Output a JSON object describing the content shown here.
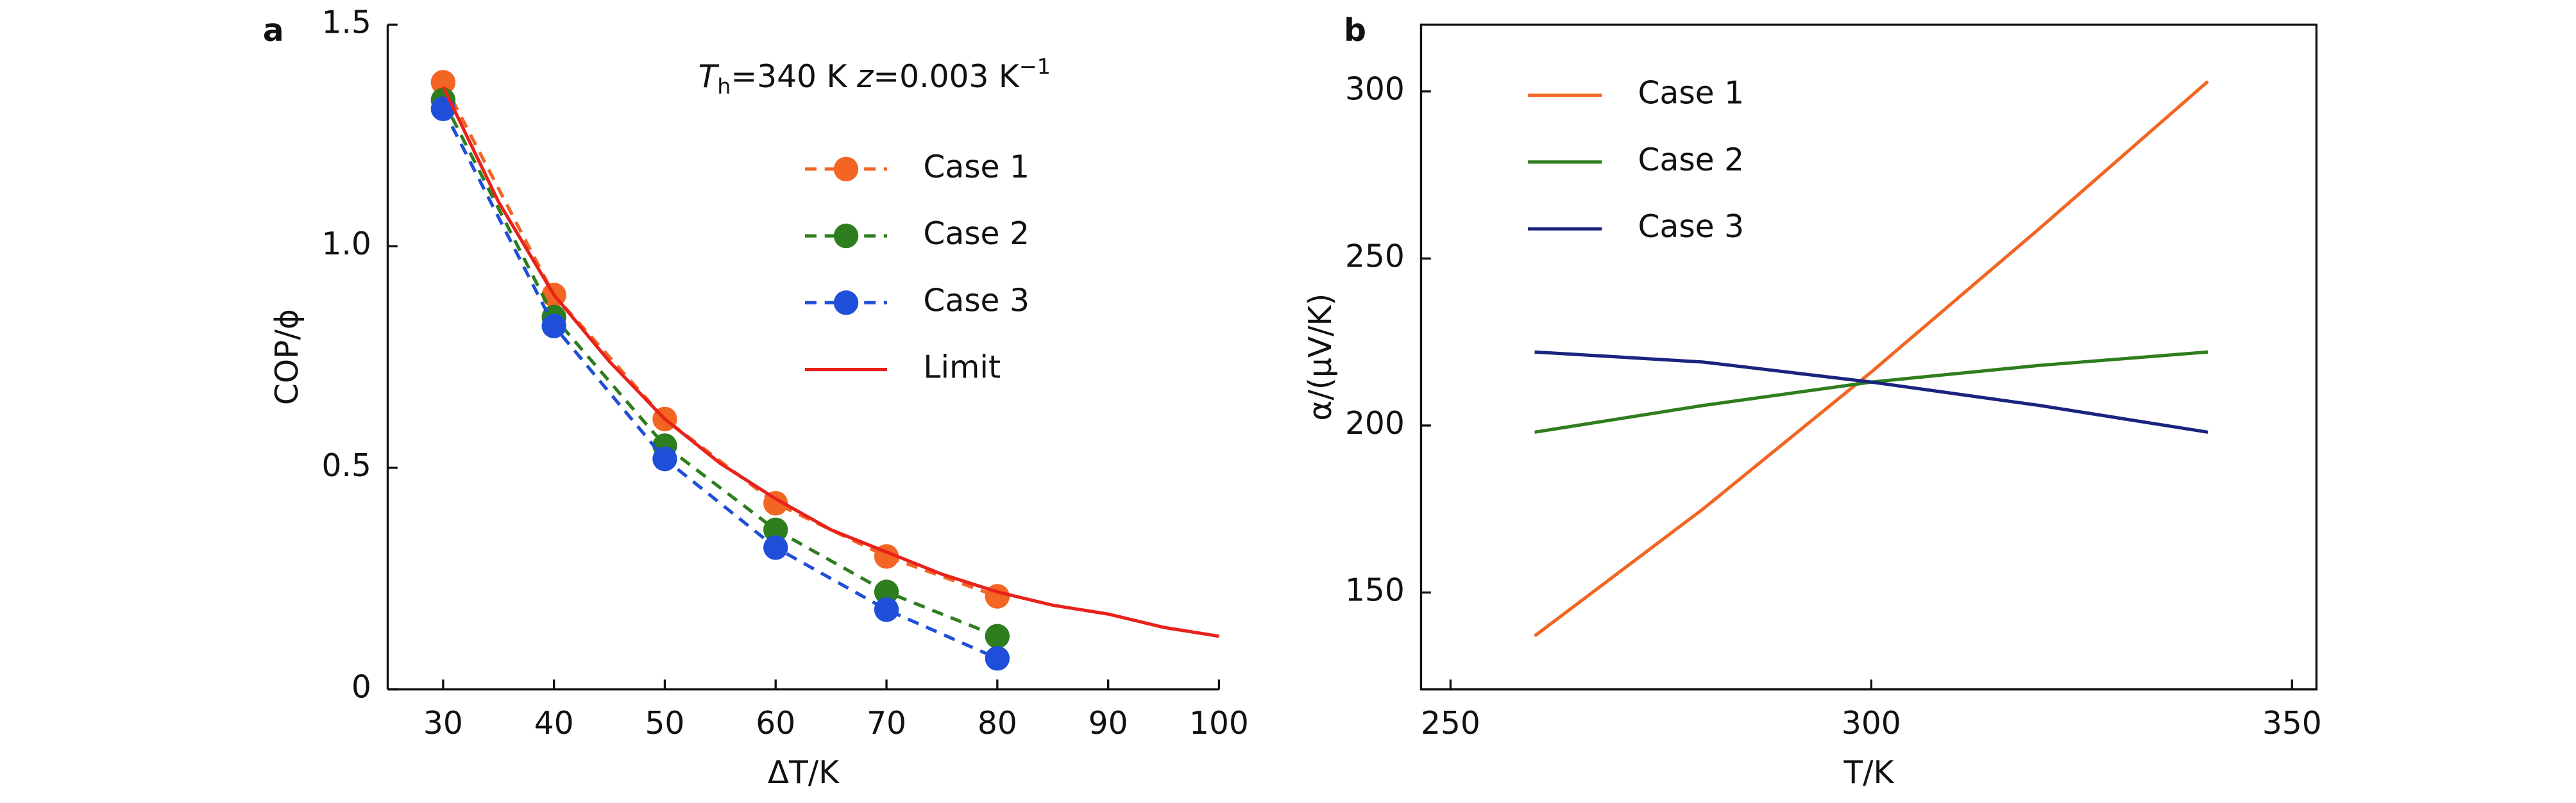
{
  "chart_data": [
    {
      "type": "line",
      "panel": "a",
      "xlabel": "ΔT/K",
      "ylabel": "COP/ϕ",
      "annotation": {
        "t": "T",
        "sub": "h",
        "mid": "=340 K  ",
        "z": "z",
        "rest": "=0.003 K",
        "sup": "−1"
      },
      "xlim": [
        25,
        100
      ],
      "xticks": [
        30,
        40,
        50,
        60,
        70,
        80,
        90,
        100
      ],
      "ylim": [
        0,
        1.5
      ],
      "yticks": [
        0,
        0.5,
        {
          "value": 1,
          "label": "1.0"
        },
        1.5
      ],
      "series": [
        {
          "name": "Case 1",
          "color": "#f26522",
          "marker": true,
          "dashed": true,
          "x": [
            30,
            40,
            50,
            60,
            70,
            80
          ],
          "values": [
            1.37,
            0.89,
            0.61,
            0.42,
            0.3,
            0.21
          ]
        },
        {
          "name": "Case 2",
          "color": "#2e7d1e",
          "marker": true,
          "dashed": true,
          "x": [
            30,
            40,
            50,
            60,
            70,
            80
          ],
          "values": [
            1.33,
            0.84,
            0.55,
            0.36,
            0.22,
            0.12
          ]
        },
        {
          "name": "Case 3",
          "color": "#1f4fd8",
          "marker": true,
          "dashed": true,
          "x": [
            30,
            40,
            50,
            60,
            70,
            80
          ],
          "values": [
            1.31,
            0.82,
            0.52,
            0.32,
            0.18,
            0.07
          ]
        },
        {
          "name": "Limit",
          "color": "#e8221b",
          "marker": false,
          "dashed": false,
          "x": [
            30,
            35,
            40,
            45,
            50,
            55,
            60,
            65,
            70,
            75,
            80,
            85,
            90,
            95,
            100
          ],
          "values": [
            1.36,
            1.1,
            0.89,
            0.74,
            0.61,
            0.51,
            0.43,
            0.36,
            0.31,
            0.26,
            0.22,
            0.19,
            0.17,
            0.14,
            0.12
          ]
        }
      ]
    },
    {
      "type": "line",
      "panel": "b",
      "xlabel": "T/K",
      "ylabel": "α/(μV/K)",
      "xlim": [
        246.5,
        352.9
      ],
      "xticks": [
        250,
        300,
        350
      ],
      "ylim": [
        121,
        320
      ],
      "yticks": [
        150,
        200,
        250,
        300
      ],
      "series": [
        {
          "name": "Case 1",
          "color": "#f26522",
          "marker": false,
          "dashed": false,
          "x": [
            260,
            280,
            300,
            320,
            340
          ],
          "values": [
            137,
            175,
            216,
            259,
            303
          ]
        },
        {
          "name": "Case 2",
          "color": "#2e7d1e",
          "marker": false,
          "dashed": false,
          "x": [
            260,
            280,
            300,
            320,
            340
          ],
          "values": [
            198,
            206,
            213,
            218,
            222
          ]
        },
        {
          "name": "Case 3",
          "color": "#1a237e",
          "marker": false,
          "dashed": false,
          "x": [
            260,
            280,
            300,
            320,
            340
          ],
          "values": [
            222,
            219,
            213,
            206,
            198
          ]
        }
      ]
    }
  ]
}
